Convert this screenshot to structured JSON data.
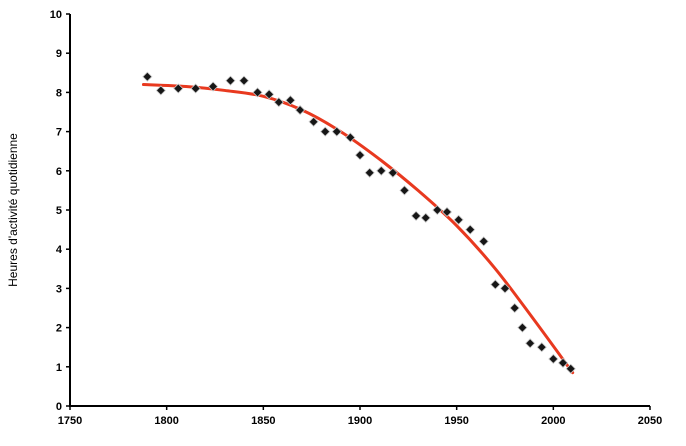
{
  "chart_data": {
    "type": "scatter",
    "title": "",
    "xlabel": "",
    "ylabel": "Heures d'activité quotidienne",
    "xlim": [
      1750,
      2050
    ],
    "ylim": [
      0,
      10
    ],
    "x_ticks": [
      1750,
      1800,
      1850,
      1900,
      1950,
      2000,
      2050
    ],
    "y_ticks": [
      0,
      1,
      2,
      3,
      4,
      5,
      6,
      7,
      8,
      9,
      10
    ],
    "grid": false,
    "legend": false,
    "series": [
      {
        "name": "heures-observees",
        "kind": "scatter",
        "marker": "diamond",
        "color": "#161616",
        "marker_stroke": "#c8c8c8",
        "points": [
          [
            1790,
            8.4
          ],
          [
            1797,
            8.05
          ],
          [
            1806,
            8.1
          ],
          [
            1815,
            8.1
          ],
          [
            1824,
            8.15
          ],
          [
            1833,
            8.3
          ],
          [
            1840,
            8.3
          ],
          [
            1847,
            8.0
          ],
          [
            1853,
            7.95
          ],
          [
            1858,
            7.75
          ],
          [
            1864,
            7.8
          ],
          [
            1869,
            7.55
          ],
          [
            1876,
            7.25
          ],
          [
            1882,
            7.0
          ],
          [
            1888,
            7.0
          ],
          [
            1895,
            6.85
          ],
          [
            1900,
            6.4
          ],
          [
            1905,
            5.95
          ],
          [
            1911,
            6.0
          ],
          [
            1917,
            5.95
          ],
          [
            1923,
            5.5
          ],
          [
            1929,
            4.85
          ],
          [
            1934,
            4.8
          ],
          [
            1940,
            5.0
          ],
          [
            1945,
            4.95
          ],
          [
            1951,
            4.75
          ],
          [
            1957,
            4.5
          ],
          [
            1964,
            4.2
          ],
          [
            1970,
            3.1
          ],
          [
            1975,
            3.0
          ],
          [
            1980,
            2.5
          ],
          [
            1984,
            2.0
          ],
          [
            1988,
            1.6
          ],
          [
            1994,
            1.5
          ],
          [
            2000,
            1.2
          ],
          [
            2005,
            1.1
          ],
          [
            2009,
            0.95
          ]
        ]
      },
      {
        "name": "courbe-de-tendance",
        "kind": "line",
        "color": "#e8391f",
        "width": 3,
        "points": [
          [
            1788,
            8.2
          ],
          [
            1810,
            8.15
          ],
          [
            1830,
            8.05
          ],
          [
            1850,
            7.9
          ],
          [
            1870,
            7.55
          ],
          [
            1890,
            7.0
          ],
          [
            1910,
            6.3
          ],
          [
            1930,
            5.5
          ],
          [
            1950,
            4.6
          ],
          [
            1970,
            3.5
          ],
          [
            1990,
            2.2
          ],
          [
            2010,
            0.85
          ]
        ]
      }
    ]
  },
  "colors": {
    "axis": "#000000",
    "background": "#ffffff"
  }
}
